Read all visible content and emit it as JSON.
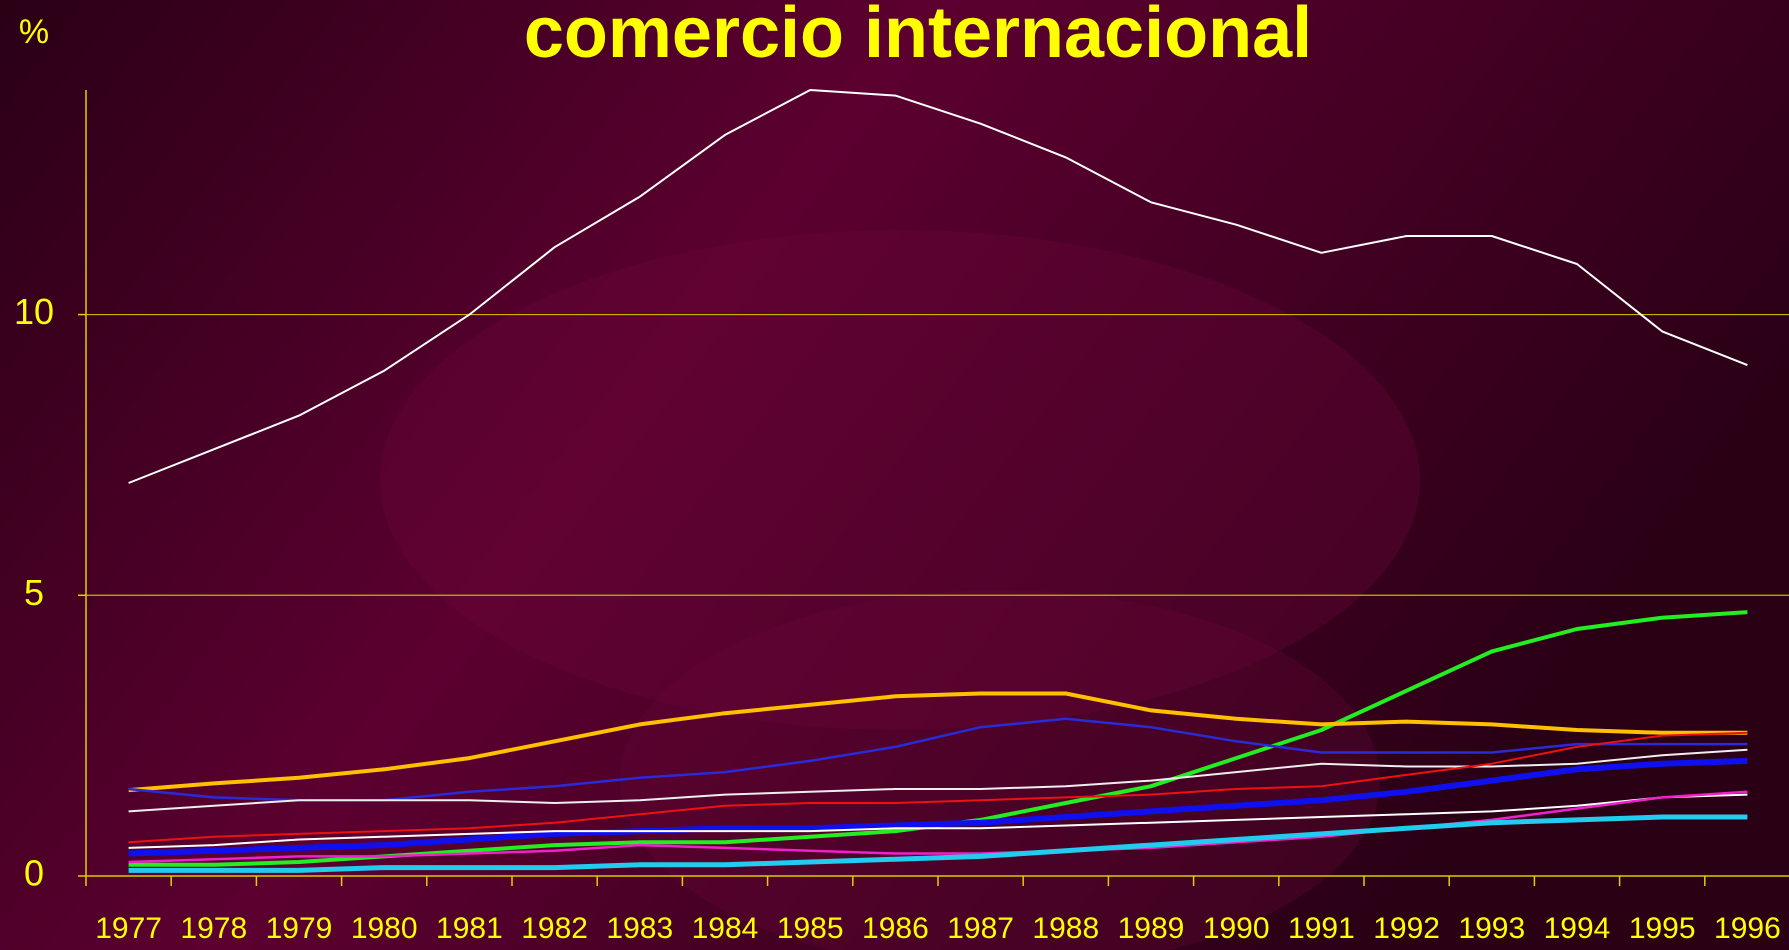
{
  "chart_data": {
    "type": "line",
    "title": "comercio internacional",
    "y_label": "%",
    "categories": [
      "1977",
      "1978",
      "1979",
      "1980",
      "1981",
      "1982",
      "1983",
      "1984",
      "1985",
      "1986",
      "1987",
      "1988",
      "1989",
      "1990",
      "1991",
      "1992",
      "1993",
      "1994",
      "1995",
      "1996"
    ],
    "ylim": [
      0,
      14
    ],
    "yticks": [
      0,
      5,
      10
    ],
    "grid": true,
    "series": [
      {
        "color": "#ffffff",
        "width": 2,
        "values": [
          7.0,
          7.6,
          8.2,
          9.0,
          10.0,
          11.2,
          12.1,
          13.2,
          14.0,
          13.9,
          13.4,
          12.8,
          12.0,
          11.6,
          11.1,
          11.4,
          11.4,
          10.9,
          9.7,
          9.1
        ]
      },
      {
        "color": "#22ee22",
        "width": 4,
        "values": [
          0.2,
          0.2,
          0.25,
          0.35,
          0.45,
          0.55,
          0.6,
          0.6,
          0.7,
          0.8,
          1.0,
          1.3,
          1.6,
          2.1,
          2.6,
          3.3,
          4.0,
          4.4,
          4.6,
          4.7
        ]
      },
      {
        "color": "#ffc000",
        "width": 4,
        "values": [
          1.53,
          1.65,
          1.75,
          1.9,
          2.1,
          2.4,
          2.7,
          2.9,
          3.05,
          3.2,
          3.25,
          3.25,
          2.95,
          2.8,
          2.7,
          2.75,
          2.7,
          2.6,
          2.55,
          2.55
        ]
      },
      {
        "color": "#2a2ad8",
        "width": 2.5,
        "values": [
          1.55,
          1.4,
          1.35,
          1.35,
          1.5,
          1.6,
          1.75,
          1.85,
          2.05,
          2.3,
          2.65,
          2.8,
          2.65,
          2.4,
          2.2,
          2.2,
          2.2,
          2.35,
          2.35,
          2.35
        ]
      },
      {
        "color": "#eeeeee",
        "width": 2,
        "values": [
          1.15,
          1.25,
          1.35,
          1.35,
          1.35,
          1.3,
          1.35,
          1.45,
          1.5,
          1.55,
          1.55,
          1.6,
          1.7,
          1.85,
          2.0,
          1.95,
          1.95,
          2.0,
          2.15,
          2.25
        ]
      },
      {
        "color": "#ee1111",
        "width": 2,
        "values": [
          0.6,
          0.7,
          0.75,
          0.8,
          0.85,
          0.95,
          1.1,
          1.25,
          1.3,
          1.3,
          1.35,
          1.4,
          1.45,
          1.55,
          1.6,
          1.8,
          2.0,
          2.3,
          2.5,
          2.55
        ]
      },
      {
        "color": "#1010ee",
        "width": 6,
        "values": [
          0.4,
          0.45,
          0.5,
          0.55,
          0.65,
          0.75,
          0.8,
          0.85,
          0.85,
          0.9,
          0.95,
          1.05,
          1.15,
          1.25,
          1.35,
          1.5,
          1.7,
          1.9,
          2.0,
          2.05
        ]
      },
      {
        "color": "#ffffff",
        "width": 2,
        "values": [
          0.5,
          0.55,
          0.65,
          0.7,
          0.75,
          0.8,
          0.8,
          0.8,
          0.8,
          0.85,
          0.85,
          0.9,
          0.95,
          1.0,
          1.05,
          1.1,
          1.15,
          1.25,
          1.4,
          1.45
        ]
      },
      {
        "color": "#ee22cc",
        "width": 2.5,
        "values": [
          0.25,
          0.3,
          0.35,
          0.35,
          0.4,
          0.45,
          0.55,
          0.5,
          0.45,
          0.4,
          0.4,
          0.45,
          0.5,
          0.6,
          0.7,
          0.85,
          1.0,
          1.2,
          1.4,
          1.5
        ]
      },
      {
        "color": "#22ccee",
        "width": 5,
        "values": [
          0.1,
          0.1,
          0.1,
          0.15,
          0.15,
          0.15,
          0.2,
          0.2,
          0.25,
          0.3,
          0.35,
          0.45,
          0.55,
          0.65,
          0.75,
          0.85,
          0.95,
          1.0,
          1.05,
          1.05
        ]
      }
    ]
  }
}
